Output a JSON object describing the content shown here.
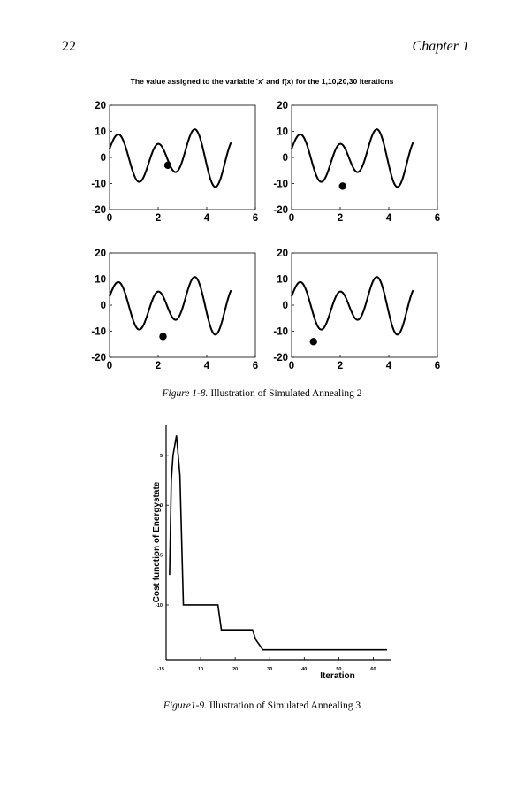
{
  "header": {
    "page_number": "22",
    "chapter": "Chapter 1"
  },
  "figure8": {
    "title": "The value assigned to the variable 'x' and f(x) for the 1,10,20,30 Iterations",
    "caption_label": "Figure 1-8.",
    "caption_text": "Illustration of Simulated Annealing 2"
  },
  "figure9": {
    "caption_label": "Figure1-9.",
    "caption_text": "Illustration of Simulated Annealing 3"
  },
  "chart_data": [
    {
      "type": "line",
      "panel": 1,
      "x_ticks": [
        "0",
        "2",
        "4",
        "6"
      ],
      "y_ticks": [
        "20",
        "10",
        "0",
        "-10",
        "-20"
      ],
      "xlim": [
        0,
        6
      ],
      "ylim": [
        -20,
        20
      ],
      "series": [
        {
          "function": "f(x)",
          "x_range": [
            0,
            5
          ]
        }
      ],
      "marker": {
        "x": 2.4,
        "y": -3
      }
    },
    {
      "type": "line",
      "panel": 2,
      "x_ticks": [
        "0",
        "2",
        "4",
        "6"
      ],
      "y_ticks": [
        "20",
        "10",
        "0",
        "-10",
        "-20"
      ],
      "xlim": [
        0,
        6
      ],
      "ylim": [
        -20,
        20
      ],
      "series": [
        {
          "function": "f(x)",
          "x_range": [
            0,
            5
          ]
        }
      ],
      "marker": {
        "x": 2.1,
        "y": -11
      }
    },
    {
      "type": "line",
      "panel": 3,
      "x_ticks": [
        "0",
        "2",
        "4",
        "6"
      ],
      "y_ticks": [
        "20",
        "10",
        "0",
        "-10",
        "-20"
      ],
      "xlim": [
        0,
        6
      ],
      "ylim": [
        -20,
        20
      ],
      "series": [
        {
          "function": "f(x)",
          "x_range": [
            0,
            5
          ]
        }
      ],
      "marker": {
        "x": 2.2,
        "y": -12
      }
    },
    {
      "type": "line",
      "panel": 4,
      "x_ticks": [
        "0",
        "2",
        "4",
        "6"
      ],
      "y_ticks": [
        "20",
        "10",
        "0",
        "-10",
        "-20"
      ],
      "xlim": [
        0,
        6
      ],
      "ylim": [
        -20,
        20
      ],
      "series": [
        {
          "function": "f(x)",
          "x_range": [
            0,
            5
          ]
        }
      ],
      "marker": {
        "x": 0.9,
        "y": -14
      }
    },
    {
      "type": "line",
      "xlabel": "Iteration",
      "ylabel": "Cost function of Energystate",
      "x_ticks": [
        "10",
        "20",
        "30",
        "40",
        "50",
        "60"
      ],
      "x_tick_values": [
        10,
        20,
        30,
        40,
        50,
        60
      ],
      "y_ticks": [
        "5",
        "0",
        "-5",
        "-10",
        "-15"
      ],
      "y_tick_values": [
        5,
        0,
        -5,
        -10,
        -15
      ],
      "xlim": [
        0,
        65
      ],
      "ylim": [
        -15.5,
        8
      ],
      "grid": false,
      "series": [
        {
          "x": [
            1,
            1.5,
            2,
            3,
            4,
            5,
            15,
            16,
            25,
            26,
            27,
            28,
            64
          ],
          "y": [
            -7,
            2.5,
            5,
            7,
            3,
            -10,
            -10,
            -12.5,
            -12.5,
            -13.5,
            -14,
            -14.5,
            -14.5
          ]
        }
      ]
    }
  ]
}
